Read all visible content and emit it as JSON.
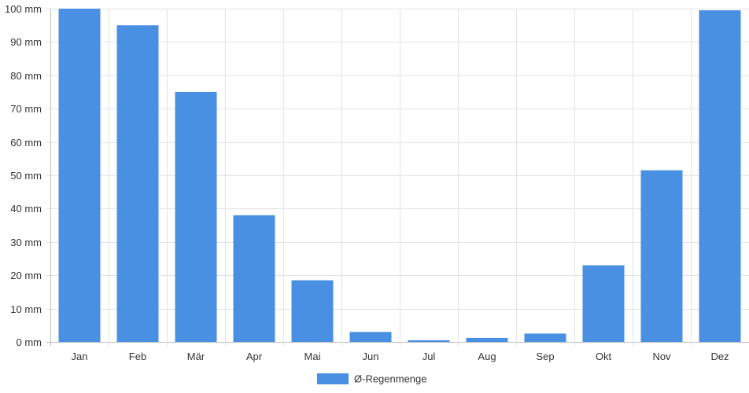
{
  "chart_data": {
    "type": "bar",
    "categories": [
      "Jan",
      "Feb",
      "Mär",
      "Apr",
      "Mai",
      "Jun",
      "Jul",
      "Aug",
      "Sep",
      "Okt",
      "Nov",
      "Dez"
    ],
    "series": [
      {
        "name": "Ø-Regenmenge",
        "values": [
          100,
          95,
          75,
          38,
          18.5,
          3,
          0.5,
          1.2,
          2.5,
          23,
          51.5,
          99.5
        ],
        "color": "#4a90e2"
      }
    ],
    "y_ticks": [
      "0 mm",
      "10 mm",
      "20 mm",
      "30 mm",
      "40 mm",
      "50 mm",
      "60 mm",
      "70 mm",
      "80 mm",
      "90 mm",
      "100 mm"
    ],
    "ylim": [
      0,
      100
    ],
    "grid": true,
    "legend_position": "bottom-center"
  }
}
